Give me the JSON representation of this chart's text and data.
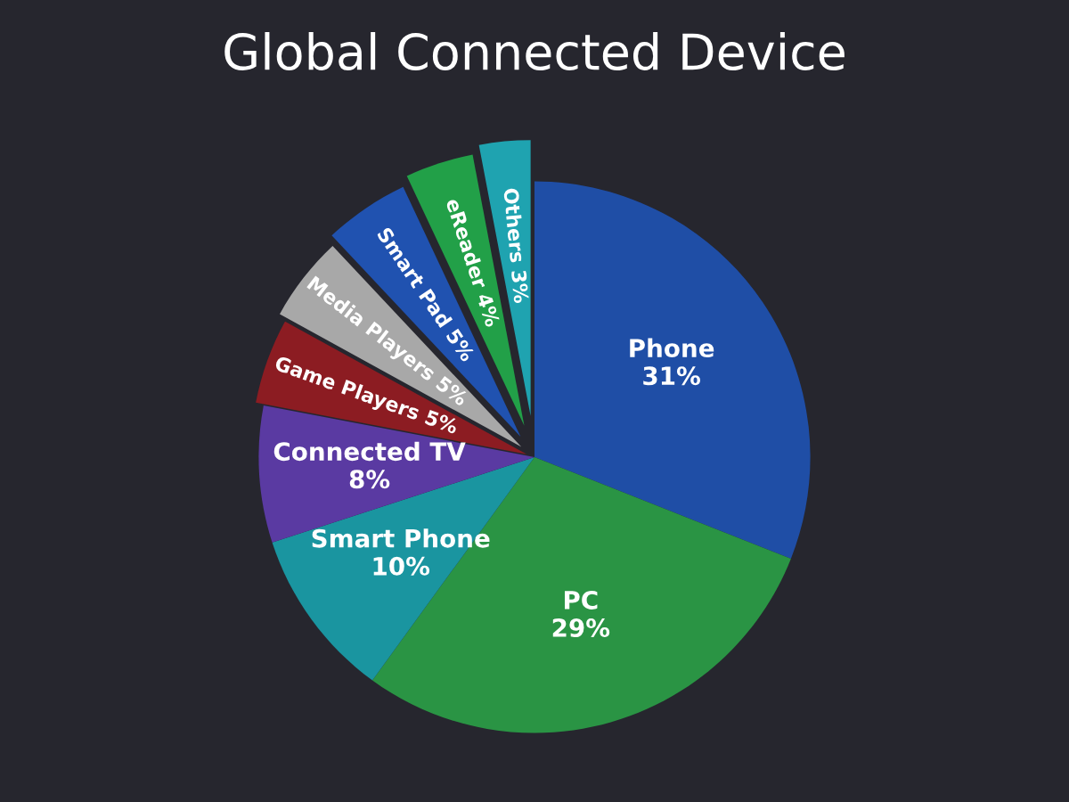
{
  "chart_data": {
    "type": "pie",
    "title": "Global Connected Device",
    "categories": [
      "Phone",
      "PC",
      "Smart Phone",
      "Connected TV",
      "Game Players",
      "Media Players",
      "Smart Pad",
      "eReader",
      "Others"
    ],
    "values": [
      31,
      29,
      10,
      8,
      5,
      5,
      5,
      4,
      3
    ],
    "colors": [
      "#1f4ea6",
      "#2a9444",
      "#1a95a0",
      "#5a3aa2",
      "#8c1c22",
      "#a8a8a8",
      "#2052b0",
      "#22a048",
      "#1fa3b0"
    ],
    "value_labels": [
      "31%",
      "29%",
      "10%",
      "8%",
      "5%",
      "5%",
      "5%",
      "4%",
      "3%"
    ],
    "legend": false
  }
}
